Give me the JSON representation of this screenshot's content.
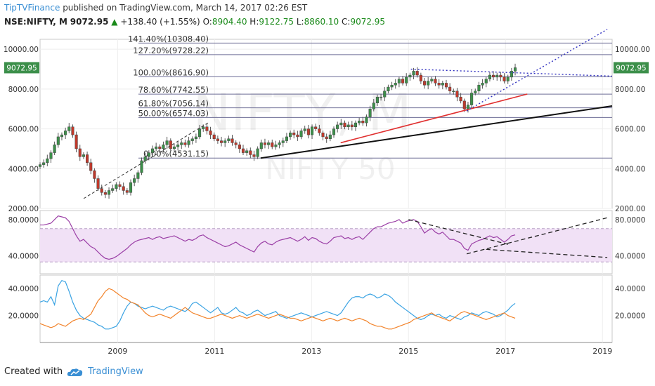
{
  "header": {
    "brand": "TipTVFinance",
    "published": "published on TradingView.com, March 14, 2017 02:26 EST"
  },
  "ohlc": {
    "symbol": "NSE:NIFTY, M",
    "last": "9072.95",
    "change": "+138.40 (+1.55%)",
    "o_label": "O:",
    "o": "8904.40",
    "h_label": "H:",
    "h": "9122.75",
    "l_label": "L:",
    "l": "8860.10",
    "c_label": "C:",
    "c": "9072.95"
  },
  "watermark": {
    "main": "NIFTY, M",
    "sub": "NIFTY 50"
  },
  "footer": {
    "created": "Created with",
    "brand": "TradingView"
  },
  "colors": {
    "up": "#3c8f4a",
    "down": "#c0392b",
    "rsi": "#9b3fa6",
    "blue_line": "#3aa3e3",
    "orange_line": "#f2832a",
    "fib": "#6e6e96",
    "red_trend": "#e03030",
    "dotted": "#3030c0"
  },
  "chart_data": [
    {
      "type": "candlestick",
      "title": "NSE:NIFTY, M",
      "ylim": [
        2000,
        10500
      ],
      "y_ticks": [
        "10000.00",
        "8000.00",
        "6000.00",
        "4000.00",
        "2000.00"
      ],
      "x_ticks": [
        "2009",
        "2011",
        "2013",
        "2015",
        "2017",
        "2019"
      ],
      "x_range": [
        2007.4,
        2019.2
      ],
      "last_price_label": "9072.95",
      "fib_levels": [
        {
          "label": "141.40%(10308.40)",
          "value": 10308.4
        },
        {
          "label": "127.20%(9728.22)",
          "value": 9728.22
        },
        {
          "label": "100.00%(8616.90)",
          "value": 8616.9
        },
        {
          "label": "78.60%(7742.55)",
          "value": 7742.55
        },
        {
          "label": "61.80%(7056.14)",
          "value": 7056.14
        },
        {
          "label": "50.00%(6574.03)",
          "value": 6574.03
        },
        {
          "label": "0.00%(4531.15)",
          "value": 4531.15
        }
      ],
      "trendlines": [
        {
          "color": "black",
          "from": [
            2011.95,
            4531
          ],
          "to": [
            2019.2,
            7150
          ]
        },
        {
          "color": "red",
          "from": [
            2013.6,
            5300
          ],
          "to": [
            2017.45,
            7750
          ]
        },
        {
          "color": "dotted",
          "from": [
            2015.05,
            9000
          ],
          "to": [
            2019.2,
            8650
          ]
        },
        {
          "color": "dotted",
          "from": [
            2016.2,
            6900
          ],
          "to": [
            2019.1,
            11000
          ]
        },
        {
          "color": "dashed",
          "from": [
            2008.3,
            2500
          ],
          "to": [
            2010.9,
            6350
          ]
        }
      ],
      "monthly_close": [
        4200,
        4300,
        4500,
        4800,
        5200,
        5600,
        5700,
        5900,
        6100,
        5700,
        5000,
        4600,
        4700,
        4300,
        3900,
        3500,
        3000,
        2800,
        2700,
        2900,
        3000,
        3200,
        3100,
        2900,
        2800,
        3300,
        3500,
        3800,
        4400,
        4600,
        4800,
        5000,
        5100,
        5000,
        5200,
        5400,
        5000,
        5100,
        5200,
        5300,
        5200,
        5400,
        5500,
        5600,
        6000,
        6100,
        5900,
        5700,
        5500,
        5400,
        5300,
        5400,
        5500,
        5300,
        5200,
        5000,
        4800,
        4900,
        4700,
        4600,
        5000,
        5300,
        5200,
        5300,
        5100,
        5200,
        5300,
        5400,
        5600,
        5800,
        5700,
        5600,
        5900,
        6000,
        5700,
        6100,
        6000,
        5800,
        5600,
        5500,
        5700,
        6000,
        6200,
        6300,
        6100,
        6200,
        6100,
        6300,
        6400,
        6300,
        6600,
        7000,
        7300,
        7600,
        7600,
        7900,
        8100,
        8200,
        8300,
        8500,
        8300,
        8600,
        8700,
        8900,
        8700,
        8400,
        8200,
        8400,
        8500,
        8300,
        8200,
        8300,
        8100,
        7900,
        7900,
        7600,
        7400,
        7000,
        7200,
        7800,
        7900,
        8200,
        8300,
        8500,
        8700,
        8600,
        8700,
        8600,
        8400,
        8600,
        8900,
        9073
      ]
    },
    {
      "type": "line",
      "title": "RSI",
      "ylim": [
        20,
        90
      ],
      "y_ticks": [
        "80.0000",
        "40.0000"
      ],
      "band": [
        33,
        70
      ],
      "series": [
        {
          "values": [
            74,
            74,
            75,
            76,
            80,
            84,
            83,
            82,
            78,
            70,
            62,
            56,
            58,
            54,
            50,
            48,
            44,
            40,
            37,
            36,
            37,
            39,
            42,
            45,
            48,
            52,
            55,
            57,
            58,
            59,
            60,
            58,
            60,
            61,
            59,
            60,
            61,
            62,
            60,
            58,
            56,
            58,
            57,
            59,
            62,
            63,
            60,
            58,
            56,
            54,
            52,
            50,
            51,
            53,
            55,
            52,
            50,
            48,
            46,
            44,
            50,
            54,
            56,
            53,
            52,
            55,
            57,
            58,
            59,
            60,
            58,
            56,
            58,
            61,
            57,
            60,
            59,
            56,
            54,
            53,
            56,
            60,
            61,
            62,
            59,
            60,
            58,
            60,
            61,
            58,
            62,
            66,
            70,
            72,
            72,
            74,
            76,
            77,
            78,
            80,
            76,
            78,
            79,
            80,
            78,
            72,
            65,
            68,
            70,
            66,
            64,
            66,
            62,
            58,
            58,
            56,
            54,
            48,
            46,
            53,
            55,
            57,
            58,
            60,
            62,
            60,
            61,
            58,
            55,
            58,
            62,
            63
          ]
        }
      ]
    },
    {
      "type": "line",
      "title": "DMI",
      "ylim": [
        0,
        50
      ],
      "y_ticks": [
        "40.0000",
        "20.0000"
      ],
      "series": [
        {
          "color": "blue",
          "values": [
            30,
            31,
            30,
            34,
            28,
            42,
            46,
            45,
            38,
            30,
            24,
            20,
            18,
            17,
            16,
            15,
            13,
            12,
            10,
            10,
            11,
            12,
            16,
            22,
            27,
            30,
            29,
            27,
            26,
            25,
            26,
            27,
            26,
            25,
            24,
            26,
            27,
            26,
            25,
            24,
            23,
            25,
            29,
            30,
            28,
            26,
            24,
            22,
            24,
            26,
            22,
            21,
            22,
            24,
            26,
            23,
            22,
            20,
            21,
            23,
            24,
            22,
            20,
            21,
            22,
            23,
            20,
            19,
            18,
            19,
            20,
            21,
            22,
            21,
            20,
            19,
            20,
            21,
            22,
            23,
            22,
            21,
            20,
            22,
            26,
            30,
            33,
            34,
            34,
            33,
            35,
            36,
            35,
            33,
            34,
            36,
            35,
            33,
            30,
            28,
            26,
            24,
            22,
            20,
            18,
            17,
            18,
            20,
            21,
            20,
            21,
            19,
            18,
            20,
            19,
            18,
            17,
            19,
            20,
            22,
            21,
            20,
            22,
            23,
            22,
            21,
            19,
            20,
            22,
            24,
            27,
            29
          ]
        },
        {
          "color": "orange",
          "values": [
            14,
            13,
            12,
            11,
            12,
            14,
            13,
            12,
            14,
            16,
            17,
            18,
            17,
            19,
            21,
            26,
            31,
            34,
            38,
            40,
            39,
            37,
            35,
            33,
            32,
            30,
            29,
            28,
            25,
            22,
            20,
            19,
            20,
            21,
            20,
            19,
            18,
            20,
            22,
            24,
            26,
            24,
            22,
            21,
            20,
            19,
            18,
            18,
            19,
            20,
            21,
            20,
            19,
            18,
            19,
            20,
            19,
            18,
            19,
            20,
            21,
            20,
            19,
            18,
            19,
            20,
            21,
            20,
            19,
            18,
            18,
            17,
            16,
            17,
            18,
            19,
            18,
            17,
            16,
            17,
            18,
            17,
            16,
            17,
            18,
            17,
            16,
            17,
            18,
            17,
            16,
            14,
            13,
            12,
            12,
            11,
            10,
            10,
            11,
            12,
            13,
            14,
            15,
            17,
            18,
            19,
            20,
            21,
            22,
            20,
            19,
            18,
            17,
            16,
            18,
            20,
            22,
            23,
            22,
            21,
            20,
            19,
            18,
            17,
            18,
            19,
            20,
            21,
            22,
            20,
            19,
            18
          ]
        }
      ]
    }
  ]
}
